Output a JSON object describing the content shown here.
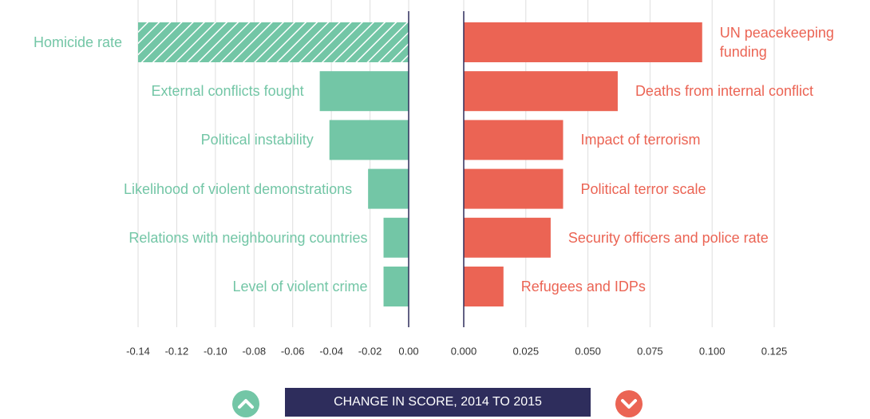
{
  "chart_data": [
    {
      "type": "bar",
      "orientation": "horizontal",
      "categories": [
        "Homicide rate",
        "External conflicts fought",
        "Political instability",
        "Likelihood of violent demonstrations",
        "Relations with neighbouring countries",
        "Level of violent crime"
      ],
      "values": [
        -0.14,
        -0.046,
        -0.041,
        -0.021,
        -0.013,
        -0.013
      ],
      "hatch": [
        true,
        false,
        false,
        false,
        false,
        false
      ],
      "color": "#73c6a6",
      "xlim": [
        -0.14,
        0
      ],
      "xticks": [
        -0.14,
        -0.12,
        {
          "value": -0.1,
          "label": "-0.10"
        },
        -0.08,
        -0.06,
        -0.04,
        -0.02,
        {
          "value": 0,
          "label": "0.00"
        }
      ],
      "grid": true
    },
    {
      "type": "bar",
      "orientation": "horizontal",
      "categories": [
        "UN peacekeeping funding",
        "Deaths from internal conflict",
        "Impact of terrorism",
        "Political terror scale",
        "Security officers and police rate",
        "Refugees and IDPs"
      ],
      "values": [
        0.096,
        0.062,
        0.04,
        0.04,
        0.035,
        0.016
      ],
      "hatch": [
        false,
        false,
        false,
        false,
        false,
        false
      ],
      "color": "#eb6454",
      "xlim": [
        0,
        0.125
      ],
      "xticks": [
        {
          "value": 0,
          "label": "0.000"
        },
        0.025,
        {
          "value": 0.05,
          "label": "0.050"
        },
        0.075,
        {
          "value": 0.1,
          "label": "0.100"
        },
        0.125
      ],
      "grid": true
    }
  ],
  "xlabel": "CHANGE IN SCORE, 2014 TO 2015"
}
